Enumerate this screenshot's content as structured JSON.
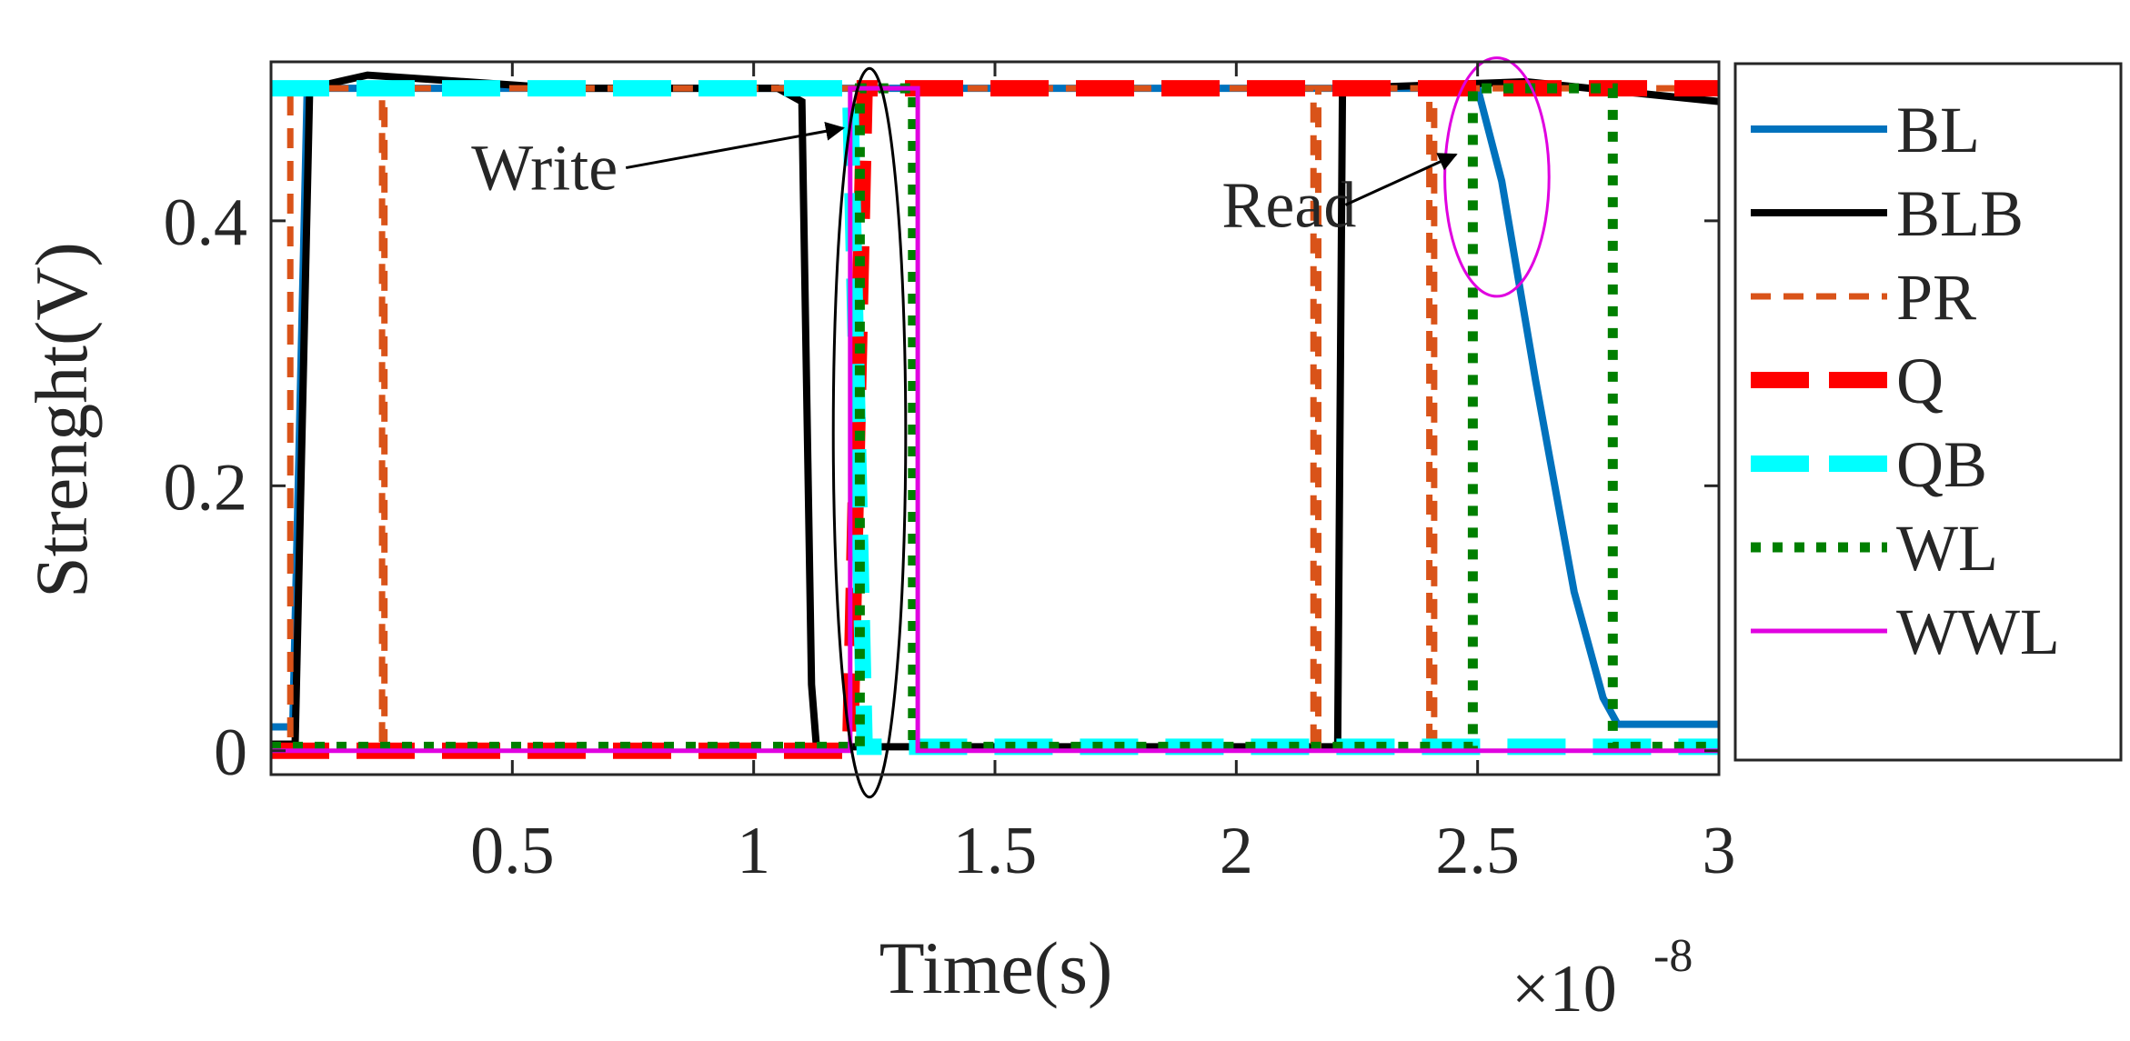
{
  "chart_data": {
    "type": "line",
    "title": "",
    "xlabel": "Time(s)",
    "ylabel": "Strenght(V)",
    "x_multiplier_label": "×10",
    "x_multiplier_exponent": "-8",
    "xlim": [
      0.0,
      3.0
    ],
    "ylim": [
      -0.018,
      0.52
    ],
    "xticks": [
      {
        "v": 0.5,
        "label": "0.5"
      },
      {
        "v": 1,
        "label": "1"
      },
      {
        "v": 1.5,
        "label": "1.5"
      },
      {
        "v": 2,
        "label": "2"
      },
      {
        "v": 2.5,
        "label": "2.5"
      },
      {
        "v": 3,
        "label": "3"
      }
    ],
    "yticks": [
      {
        "v": 0,
        "label": "0"
      },
      {
        "v": 0.2,
        "label": "0.2"
      },
      {
        "v": 0.4,
        "label": "0.4"
      }
    ],
    "grid": false,
    "legend_position": "right-outside",
    "series": [
      {
        "name": "BL",
        "color": "#0072BD",
        "style": "solid",
        "width": 8,
        "points": [
          [
            0,
            0.018
          ],
          [
            0.045,
            0.018
          ],
          [
            0.075,
            0.5
          ],
          [
            1.1,
            0.5
          ],
          [
            1.14,
            0.5
          ],
          [
            2.2,
            0.5
          ],
          [
            2.225,
            0.5
          ],
          [
            2.5,
            0.5
          ],
          [
            2.55,
            0.43
          ],
          [
            2.62,
            0.28
          ],
          [
            2.7,
            0.12
          ],
          [
            2.76,
            0.04
          ],
          [
            2.79,
            0.02
          ],
          [
            3.0,
            0.02
          ]
        ]
      },
      {
        "name": "BLB",
        "color": "#000000",
        "style": "solid",
        "width": 8,
        "points": [
          [
            0,
            0.005
          ],
          [
            0.05,
            0.005
          ],
          [
            0.08,
            0.5
          ],
          [
            0.2,
            0.51
          ],
          [
            0.6,
            0.5
          ],
          [
            1.05,
            0.5
          ],
          [
            1.1,
            0.49
          ],
          [
            1.12,
            0.05
          ],
          [
            1.13,
            0.003
          ],
          [
            2.19,
            0.003
          ],
          [
            2.21,
            0.003
          ],
          [
            2.22,
            0.5
          ],
          [
            2.6,
            0.505
          ],
          [
            3.0,
            0.49
          ]
        ]
      },
      {
        "name": "PR",
        "color": "#D95319",
        "style": "dash",
        "width": 7,
        "points": [
          [
            0,
            0
          ],
          [
            0.04,
            0
          ],
          [
            0.04,
            0.5
          ],
          [
            0.23,
            0.5
          ],
          [
            0.23,
            0
          ],
          [
            0.235,
            0
          ],
          [
            0.235,
            0.5
          ],
          [
            2.16,
            0.5
          ],
          [
            2.16,
            0
          ],
          [
            2.17,
            0
          ],
          [
            2.17,
            0.5
          ],
          [
            2.4,
            0.5
          ],
          [
            2.4,
            0
          ],
          [
            2.41,
            0
          ],
          [
            2.41,
            0.5
          ],
          [
            3.0,
            0.5
          ]
        ]
      },
      {
        "name": "Q",
        "color": "#FF0000",
        "style": "longdash",
        "width": 18,
        "points": [
          [
            0,
            0
          ],
          [
            1.2,
            0
          ],
          [
            1.215,
            0.25
          ],
          [
            1.23,
            0.5
          ],
          [
            3.0,
            0.5
          ]
        ]
      },
      {
        "name": "QB",
        "color": "#00FFFF",
        "style": "longdash",
        "width": 18,
        "points": [
          [
            0,
            0.5
          ],
          [
            1.2,
            0.5
          ],
          [
            1.215,
            0.25
          ],
          [
            1.23,
            0.003
          ],
          [
            3.0,
            0.003
          ]
        ]
      },
      {
        "name": "WL",
        "color": "#007F00",
        "style": "dot",
        "width": 11,
        "points": [
          [
            0,
            0.003
          ],
          [
            1.22,
            0.003
          ],
          [
            1.22,
            0.5
          ],
          [
            1.33,
            0.5
          ],
          [
            1.33,
            0.003
          ],
          [
            2.49,
            0.003
          ],
          [
            2.49,
            0.5
          ],
          [
            2.78,
            0.5
          ],
          [
            2.78,
            0.003
          ],
          [
            3.0,
            0.003
          ]
        ]
      },
      {
        "name": "WWL",
        "color": "#E000E0",
        "style": "solid",
        "width": 5,
        "points": [
          [
            0,
            0
          ],
          [
            1.2,
            0
          ],
          [
            1.2,
            0.5
          ],
          [
            1.34,
            0.5
          ],
          [
            1.34,
            0
          ],
          [
            3.0,
            0
          ]
        ]
      }
    ],
    "annotations": [
      {
        "text": "Write",
        "label_xy": [
          0.415,
          0.44
        ],
        "arrow_to": [
          1.185,
          0.47
        ],
        "ellipse": {
          "cx": 1.24,
          "cy": 0.24,
          "rx": 0.075,
          "ry": 0.275,
          "color": "#000000"
        }
      },
      {
        "text": "Read",
        "label_xy": [
          1.97,
          0.412
        ],
        "arrow_to": [
          2.455,
          0.45
        ],
        "ellipse": {
          "cx": 2.54,
          "cy": 0.433,
          "rx": 0.108,
          "ry": 0.09,
          "color": "#E000E0"
        }
      }
    ]
  }
}
